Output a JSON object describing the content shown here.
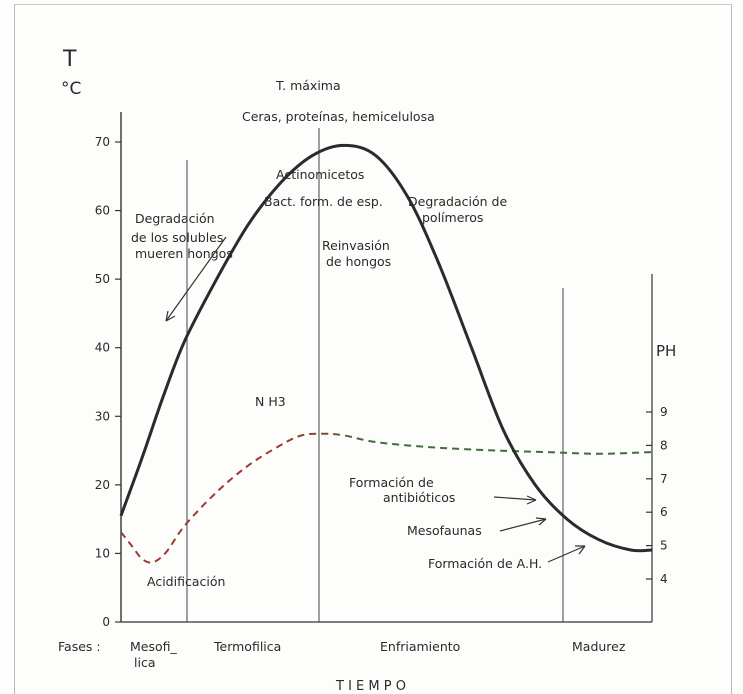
{
  "chart_data": {
    "type": "line",
    "left_axis": {
      "title_line1": "T",
      "title_line2": "°C",
      "ticks": [
        "0",
        "10",
        "20",
        "30",
        "40",
        "50",
        "60",
        "70"
      ],
      "range": [
        0,
        75
      ]
    },
    "right_axis": {
      "title": "PH",
      "ticks": [
        "4",
        "5",
        "6",
        "7",
        "8",
        "9"
      ],
      "range": [
        3,
        10
      ]
    },
    "x_axis_title": "T I E M P O",
    "phases_label": "Fases :",
    "phases": [
      {
        "name": "Mesofi_",
        "name2": "lica"
      },
      {
        "name": "Termofilica"
      },
      {
        "name": "Enfriamiento"
      },
      {
        "name": "Madurez"
      }
    ],
    "series": [
      {
        "name": "T",
        "style": "solid",
        "points": [
          [
            0,
            15.5
          ],
          [
            0.04,
            24
          ],
          [
            0.08,
            33
          ],
          [
            0.12,
            41
          ],
          [
            0.18,
            50
          ],
          [
            0.24,
            58
          ],
          [
            0.3,
            64
          ],
          [
            0.36,
            68
          ],
          [
            0.42,
            69.5
          ],
          [
            0.48,
            68
          ],
          [
            0.54,
            62
          ],
          [
            0.6,
            52
          ],
          [
            0.66,
            40
          ],
          [
            0.72,
            28
          ],
          [
            0.78,
            20
          ],
          [
            0.84,
            15
          ],
          [
            0.9,
            12
          ],
          [
            0.96,
            10.5
          ],
          [
            1,
            10.5
          ]
        ]
      },
      {
        "name": "pH",
        "style": "dashed",
        "points": [
          [
            0,
            5.4
          ],
          [
            0.02,
            5.0
          ],
          [
            0.04,
            4.6
          ],
          [
            0.06,
            4.5
          ],
          [
            0.085,
            4.8
          ],
          [
            0.12,
            5.6
          ],
          [
            0.18,
            6.6
          ],
          [
            0.24,
            7.4
          ],
          [
            0.3,
            8.0
          ],
          [
            0.34,
            8.3
          ],
          [
            0.38,
            8.35
          ],
          [
            0.42,
            8.3
          ],
          [
            0.48,
            8.1
          ],
          [
            0.58,
            7.95
          ],
          [
            0.7,
            7.85
          ],
          [
            0.8,
            7.8
          ],
          [
            0.9,
            7.75
          ],
          [
            1,
            7.8
          ]
        ]
      }
    ],
    "annotations": {
      "t_maxima": "T. máxima",
      "ceras": "Ceras, proteínas, hemicelulosa",
      "actinomicetos": "Actinomicetos",
      "bact": "Bact. form. de esp.",
      "degr_polimeros_1": "Degradación de",
      "degr_polimeros_2": "polímeros",
      "degr_solubles_1": "Degradación",
      "degr_solubles_2": "de los solubles",
      "degr_solubles_3": "mueren hongos",
      "reinvasion_1": "Reinvasión",
      "reinvasion_2": "de hongos",
      "nh3": "N H3",
      "acidificacion": "Acidificación",
      "antibioticos_1": "Formación de",
      "antibioticos_2": "antibióticos",
      "mesofaunas": "Mesofaunas",
      "ah": "Formación de A.H."
    },
    "colors": {
      "temperature": "#2b2b2b",
      "ph_red": "#9a3c34",
      "ph_green": "#3f6e38"
    }
  }
}
